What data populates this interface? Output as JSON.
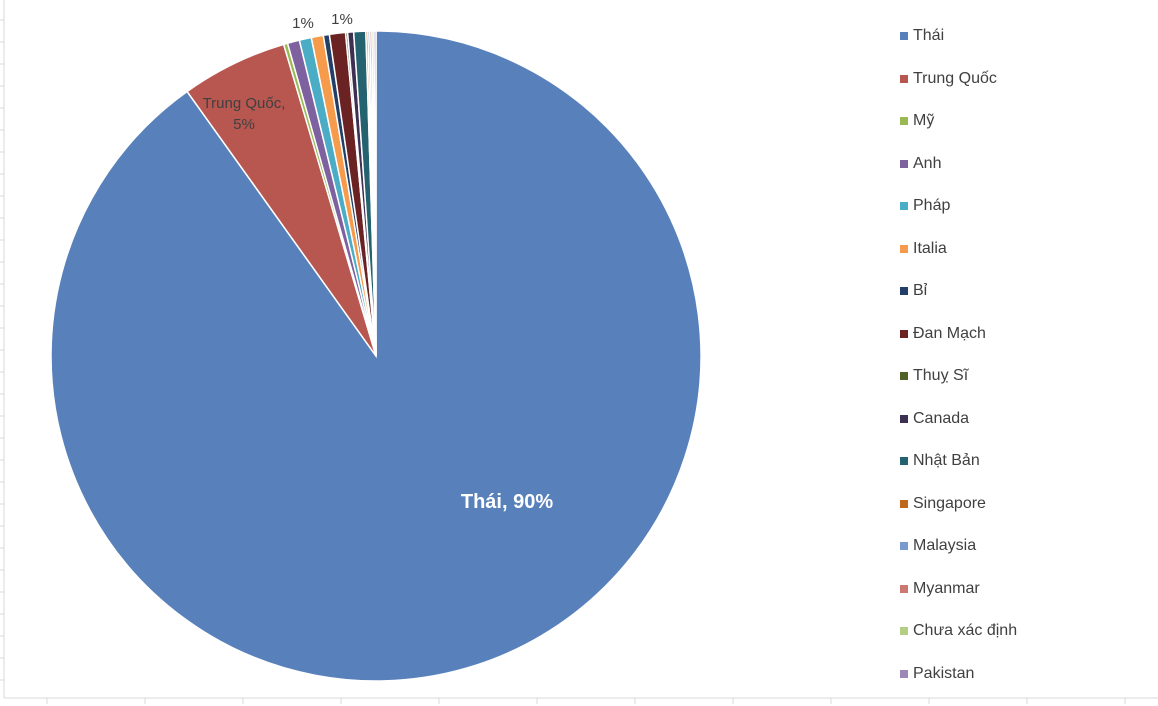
{
  "chart_data": {
    "type": "pie",
    "categories": [
      "Thái",
      "Trung Quốc",
      "Mỹ",
      "Anh",
      "Pháp",
      "Italia",
      "Bỉ",
      "Đan Mạch",
      "Thuỵ Sĩ",
      "Canada",
      "Nhật Bản",
      "Singapore",
      "Malaysia",
      "Myanmar",
      "Chưa xác định",
      "Pakistan"
    ],
    "values": [
      90.4,
      5.3,
      0.2,
      0.6,
      0.6,
      0.6,
      0.3,
      0.8,
      0.1,
      0.3,
      0.6,
      0.1,
      0.1,
      0.1,
      0.1,
      0.1
    ],
    "colors": [
      "#5880bb",
      "#b85650",
      "#98b954",
      "#7e62a0",
      "#4bacc6",
      "#f59b4b",
      "#233f68",
      "#6b2222",
      "#506127",
      "#3e3053",
      "#25626f",
      "#c0661c",
      "#789acd",
      "#cd7773",
      "#b2cf84",
      "#9c88b5"
    ],
    "data_labels": [
      {
        "text": "Thái, 90%"
      },
      {
        "text": "Trung Quốc,"
      },
      {
        "text": "5%"
      },
      {
        "text": "1%"
      },
      {
        "text": "1%"
      }
    ],
    "legend_position": "right"
  }
}
